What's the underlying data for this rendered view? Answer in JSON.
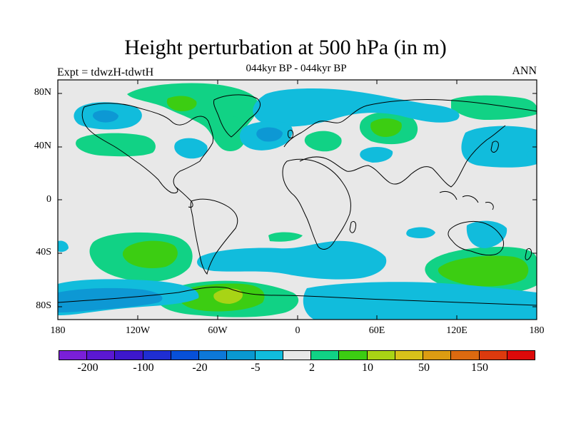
{
  "title": "Height perturbation at 500 hPa (in m)",
  "subtitle": "044kyr BP - 044kyr BP",
  "left_label": "Expt = tdwzH-tdwtH",
  "right_label": "ANN",
  "y_ticks": [
    "80N",
    "40N",
    "0",
    "40S",
    "80S"
  ],
  "x_ticks": [
    "180",
    "120W",
    "60W",
    "0",
    "60E",
    "120E",
    "180"
  ],
  "colorbar": {
    "colors": [
      "#7a1fd8",
      "#5b18d2",
      "#3d17cc",
      "#1f2ed2",
      "#0750d8",
      "#0d78d8",
      "#0a98d0",
      "#11bcdc",
      "#e8e8e8",
      "#11d285",
      "#3ccd12",
      "#a8d415",
      "#d8c21a",
      "#dc9c12",
      "#dc6a10",
      "#dc3a0e",
      "#dc0a0a"
    ],
    "labels": [
      "-200",
      "-100",
      "-20",
      "-5",
      "2",
      "10",
      "50",
      "150"
    ]
  },
  "map_colors": {
    "background": "#e8e8e8",
    "cyan": "#11bcdc",
    "blue": "#0d98d4",
    "green": "#11d285",
    "bright_green": "#3ccd12",
    "yellow_green": "#a8d415",
    "coast": "#000000"
  }
}
